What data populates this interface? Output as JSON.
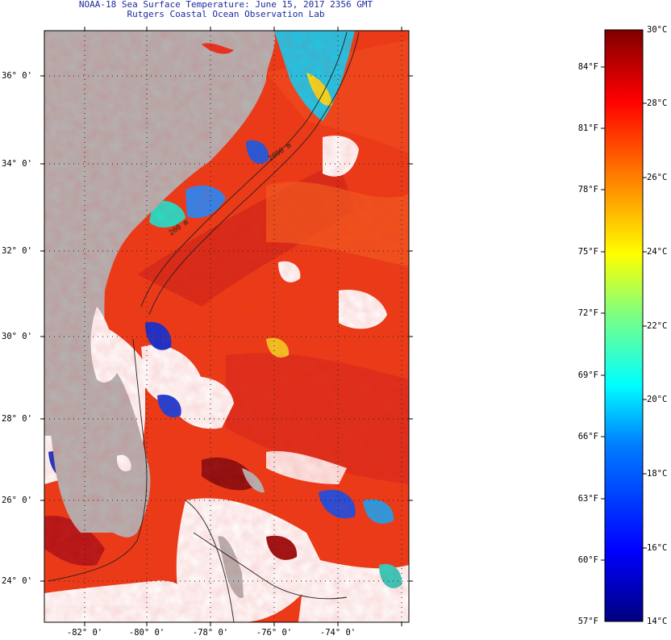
{
  "title": {
    "line1": "NOAA-18 Sea Surface Temperature:  June 15, 2017 2356 GMT",
    "line2": "Rutgers Coastal Ocean Observation Lab"
  },
  "map": {
    "latitude_labels": [
      "36° 0'",
      "34° 0'",
      "32° 0'",
      "30° 0'",
      "28° 0'",
      "26° 0'",
      "24° 0'"
    ],
    "longitude_labels": [
      "-82° 0'",
      "-80° 0'",
      "-78° 0'",
      "-76° 0'",
      "-74° 0'"
    ],
    "contour_labels": [
      "200 m",
      "2000 m"
    ],
    "colors": {
      "land": "#b4b4b4",
      "no_data": "#ffffff",
      "warm_water": "#ee3a12",
      "hot_water": "#c81414",
      "cool_water": "#1f6ff0",
      "cold_water": "#1020b8",
      "gridline": "#222222"
    }
  },
  "colorbar": {
    "fahrenheit_labels": [
      "84°F",
      "81°F",
      "78°F",
      "75°F",
      "72°F",
      "69°F",
      "66°F",
      "63°F",
      "60°F",
      "57°F"
    ],
    "celsius_labels": [
      "30°C",
      "28°C",
      "26°C",
      "24°C",
      "22°C",
      "20°C",
      "18°C",
      "16°C",
      "14°C"
    ],
    "min_c": 14,
    "max_c": 30,
    "stops": [
      "#00007f",
      "#0000ff",
      "#007fff",
      "#00ffff",
      "#7fff7f",
      "#ffff00",
      "#ff7f00",
      "#ff0000",
      "#7f0000"
    ]
  }
}
